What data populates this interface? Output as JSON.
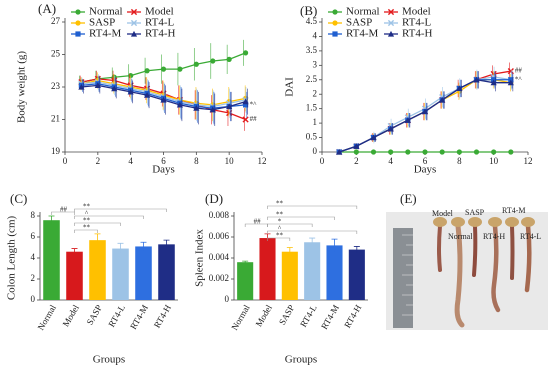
{
  "chart_data": [
    {
      "type": "line",
      "panel_label": "(A)",
      "y_label": "Body weight (g)",
      "x_label": "Days",
      "x": [
        1,
        2,
        3,
        4,
        5,
        6,
        7,
        8,
        9,
        10,
        11
      ],
      "xlim": [
        0,
        12
      ],
      "xticks": [
        0,
        2,
        4,
        6,
        8,
        10,
        12
      ],
      "ylim": [
        19,
        27
      ],
      "yticks": [
        19,
        21,
        23,
        25,
        27
      ],
      "series": [
        {
          "name": "Normal",
          "color": "#3aaa35",
          "marker": "circle",
          "values": [
            23.3,
            23.5,
            23.6,
            23.7,
            24.0,
            24.1,
            24.1,
            24.4,
            24.6,
            24.7,
            25.1
          ],
          "errors": [
            0.4,
            0.5,
            0.6,
            0.7,
            0.8,
            0.9,
            1.0,
            1.0,
            1.1,
            0.9,
            0.8
          ]
        },
        {
          "name": "Model",
          "color": "#e31a1c",
          "marker": "x",
          "values": [
            23.3,
            23.5,
            23.4,
            23.1,
            22.9,
            22.6,
            22.2,
            21.9,
            21.6,
            21.4,
            21.0
          ],
          "errors": [
            0.4,
            0.5,
            0.6,
            0.7,
            0.7,
            0.8,
            0.9,
            0.9,
            0.9,
            0.8,
            0.7
          ]
        },
        {
          "name": "SASP",
          "color": "#ffc000",
          "marker": "circle",
          "values": [
            23.2,
            23.4,
            23.2,
            23.0,
            22.8,
            22.5,
            22.2,
            22.0,
            21.9,
            22.1,
            22.3
          ],
          "errors": [
            0.4,
            0.5,
            0.6,
            0.7,
            0.8,
            0.9,
            0.9,
            1.0,
            1.0,
            0.9,
            0.8
          ]
        },
        {
          "name": "RT4-L",
          "color": "#9dc3e6",
          "marker": "x",
          "values": [
            23.2,
            23.3,
            23.1,
            22.9,
            22.7,
            22.4,
            22.1,
            21.9,
            21.8,
            22.0,
            22.2
          ],
          "errors": [
            0.4,
            0.5,
            0.6,
            0.7,
            0.8,
            0.9,
            1.0,
            1.0,
            1.0,
            0.9,
            0.8
          ]
        },
        {
          "name": "RT4-M",
          "color": "#1f5fd0",
          "marker": "square",
          "values": [
            23.1,
            23.2,
            23.0,
            22.8,
            22.6,
            22.3,
            22.0,
            21.8,
            21.7,
            21.8,
            21.9
          ],
          "errors": [
            0.4,
            0.5,
            0.6,
            0.7,
            0.8,
            0.9,
            1.0,
            1.0,
            1.0,
            0.9,
            0.8
          ]
        },
        {
          "name": "RT4-H",
          "color": "#1f2d86",
          "marker": "triangle",
          "values": [
            23.0,
            23.1,
            22.9,
            22.7,
            22.5,
            22.2,
            21.9,
            21.7,
            21.6,
            21.8,
            22.1
          ],
          "errors": [
            0.4,
            0.5,
            0.6,
            0.7,
            0.8,
            0.9,
            1.0,
            1.0,
            1.0,
            0.9,
            0.8
          ]
        }
      ],
      "annotations": [
        "##",
        "*^"
      ]
    },
    {
      "type": "line",
      "panel_label": "(B)",
      "y_label": "DAI",
      "x_label": "Days",
      "x": [
        1,
        2,
        3,
        4,
        5,
        6,
        7,
        8,
        9,
        10,
        11
      ],
      "xlim": [
        0,
        12
      ],
      "xticks": [
        0,
        2,
        4,
        6,
        8,
        10,
        12
      ],
      "ylim": [
        0,
        4.5
      ],
      "yticks": [
        0,
        0.5,
        1,
        1.5,
        2,
        2.5,
        3,
        3.5,
        4,
        4.5
      ],
      "series": [
        {
          "name": "Normal",
          "color": "#3aaa35",
          "marker": "circle",
          "values": [
            0,
            0,
            0,
            0,
            0,
            0,
            0,
            0,
            0,
            0,
            0
          ]
        },
        {
          "name": "Model",
          "color": "#e31a1c",
          "marker": "x",
          "values": [
            0,
            0.2,
            0.5,
            0.8,
            1.1,
            1.4,
            1.8,
            2.2,
            2.5,
            2.7,
            2.8
          ],
          "errors": [
            0,
            0.1,
            0.15,
            0.2,
            0.25,
            0.3,
            0.3,
            0.3,
            0.3,
            0.3,
            0.3
          ]
        },
        {
          "name": "SASP",
          "color": "#ffc000",
          "marker": "circle",
          "values": [
            0,
            0.2,
            0.5,
            0.8,
            1.1,
            1.4,
            1.8,
            2.1,
            2.5,
            2.5,
            2.4
          ],
          "errors": [
            0,
            0.1,
            0.15,
            0.2,
            0.25,
            0.3,
            0.3,
            0.3,
            0.3,
            0.3,
            0.3
          ]
        },
        {
          "name": "RT4-L",
          "color": "#9dc3e6",
          "marker": "x",
          "values": [
            0,
            0.2,
            0.5,
            0.9,
            1.2,
            1.5,
            1.9,
            2.2,
            2.5,
            2.6,
            2.5
          ],
          "errors": [
            0,
            0.1,
            0.2,
            0.25,
            0.3,
            0.35,
            0.35,
            0.35,
            0.35,
            0.35,
            0.35
          ]
        },
        {
          "name": "RT4-M",
          "color": "#1f5fd0",
          "marker": "square",
          "values": [
            0,
            0.2,
            0.5,
            0.8,
            1.1,
            1.4,
            1.8,
            2.2,
            2.5,
            2.5,
            2.5
          ],
          "errors": [
            0,
            0.1,
            0.15,
            0.2,
            0.25,
            0.3,
            0.3,
            0.3,
            0.3,
            0.3,
            0.3
          ]
        },
        {
          "name": "RT4-H",
          "color": "#1f2d86",
          "marker": "triangle",
          "values": [
            0,
            0.2,
            0.5,
            0.8,
            1.1,
            1.4,
            1.8,
            2.2,
            2.5,
            2.4,
            2.4
          ],
          "errors": [
            0,
            0.1,
            0.15,
            0.2,
            0.25,
            0.3,
            0.3,
            0.3,
            0.3,
            0.3,
            0.3
          ]
        }
      ],
      "annotations": [
        "##",
        "*^"
      ]
    },
    {
      "type": "bar",
      "panel_label": "(C)",
      "y_label": "Colon Length (cm)",
      "x_label": "Groups",
      "categories": [
        "Normal",
        "Model",
        "SASP",
        "RT4-L",
        "RT4-M",
        "RT4-H"
      ],
      "values": [
        7.6,
        4.6,
        5.7,
        4.9,
        5.1,
        5.3
      ],
      "errors": [
        0.4,
        0.3,
        0.6,
        0.5,
        0.4,
        0.4
      ],
      "colors": [
        "#3aaa35",
        "#d7191c",
        "#ffc000",
        "#9dc3e6",
        "#2e6fe0",
        "#1f2d86"
      ],
      "ylim": [
        0,
        8
      ],
      "yticks": [
        0,
        2,
        4,
        6,
        8
      ],
      "annotations": [
        "##",
        "**",
        "**",
        "^",
        "**"
      ]
    },
    {
      "type": "bar",
      "panel_label": "(D)",
      "y_label": "Spleen Index",
      "x_label": "Groups",
      "categories": [
        "Normal",
        "Model",
        "SASP",
        "RT4-L",
        "RT4-M",
        "RT4-H"
      ],
      "values": [
        0.0036,
        0.0059,
        0.0046,
        0.0055,
        0.0052,
        0.0048
      ],
      "errors": [
        0.0001,
        0.0004,
        0.0004,
        0.0004,
        0.0006,
        0.0003
      ],
      "colors": [
        "#3aaa35",
        "#d7191c",
        "#ffc000",
        "#9dc3e6",
        "#2e6fe0",
        "#1f2d86"
      ],
      "ylim": [
        0,
        0.008
      ],
      "yticks": [
        0,
        0.002,
        0.004,
        0.006,
        0.008
      ],
      "annotations": [
        "##",
        "**",
        "*",
        "**",
        "^",
        "**"
      ]
    }
  ],
  "photo": {
    "panel_label": "(E)",
    "labels": [
      "Model",
      "SASP",
      "RT4-M",
      "Normal",
      "RT4-H",
      "RT4-L"
    ]
  }
}
